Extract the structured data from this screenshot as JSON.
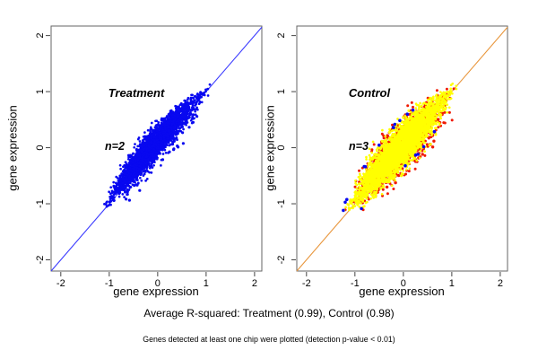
{
  "figure": {
    "caption": "Average R-squared: Treatment (0.99), Control (0.98)",
    "footnote": "Genes detected at least one chip were plotted (detection p-value < 0.01)"
  },
  "chart_data": [
    {
      "type": "scatter",
      "panel_label": "Treatment",
      "annotation": "n=2",
      "xlabel": "gene expression",
      "ylabel": "gene expression",
      "xlim": [
        -2.2,
        2.15
      ],
      "ylim": [
        -2.2,
        2.17
      ],
      "xticks": [
        -2,
        -1,
        0,
        1,
        2
      ],
      "yticks": [
        -2,
        -1,
        0,
        1,
        2
      ],
      "grid": false,
      "legend": null,
      "r_squared": 0.99,
      "identity_line_color": "#3b3bff",
      "panel_label_color": "#8c8c8c",
      "annotation_color": "#000000",
      "description": "Dense cloud of blue replicate gene-expression points hugging the y=x identity line from about (-1.2,-1.2) to (1.16,1.16), bulging slightly above the line mid-range, with sparse outlier dots below the line.",
      "series": [
        {
          "name": "treatment-points",
          "color": "#0808f0",
          "n": 2800,
          "radius": 1.35,
          "t_range": [
            -1.2,
            1.16
          ],
          "width_center": 0.18,
          "width_edge": 0.02,
          "bow": 0.1,
          "sag": [
            0.07,
            0.18
          ],
          "outliers": {
            "n": 42,
            "t_range": [
              -0.8,
              0.7
            ],
            "perp": [
              0.14,
              0.55
            ],
            "radius": 1.6
          }
        }
      ]
    },
    {
      "type": "scatter",
      "panel_label": "Control",
      "annotation": "n=3",
      "xlabel": "gene expression",
      "ylabel": "gene expression",
      "xlim": [
        -2.2,
        2.15
      ],
      "ylim": [
        -2.2,
        2.17
      ],
      "xticks": [
        -2,
        -1,
        0,
        1,
        2
      ],
      "yticks": [
        -2,
        -1,
        0,
        1,
        2
      ],
      "grid": false,
      "legend": null,
      "r_squared": 0.98,
      "identity_line_color": "#e8963c",
      "panel_label_color": "#8c8c8c",
      "annotation_color": "#000000",
      "description": "Wide yellow cloud along the y=x identity line from about (-1.25,-1.25) to (1.2,1.2) with a red fringe of points peeking out around its edge, red outlier dots below the line, and a few blue points along the cloud edges.",
      "series": [
        {
          "name": "control-red-fringe",
          "color": "#f01800",
          "n": 1100,
          "radius": 1.5,
          "t_range": [
            -1.24,
            1.19
          ],
          "width_center": 0.3,
          "width_edge": 0.04,
          "bow": 0.06,
          "sag": [
            0.12,
            0.2
          ],
          "outliers": {
            "n": 26,
            "t_range": [
              -0.6,
              0.55
            ],
            "perp": [
              0.18,
              0.6
            ],
            "radius": 1.7
          }
        },
        {
          "name": "control-yellow-core",
          "color": "#ffff00",
          "n": 3400,
          "radius": 1.35,
          "t_range": [
            -1.25,
            1.2
          ],
          "width_center": 0.26,
          "width_edge": 0.03,
          "bow": 0.06,
          "sag": [
            0.08,
            0.15
          ]
        },
        {
          "name": "control-blue-accents",
          "color": "#0808f0",
          "n": 0,
          "radius": 1.8,
          "t_range": [
            -1.25,
            1.2
          ],
          "width_center": 0.27,
          "width_edge": 0.03,
          "bow": 0.06,
          "edge": {
            "n": 18,
            "t_range": [
              -1.2,
              0.5
            ],
            "above_frac": 0.6,
            "pad": 0.015,
            "jitter": 0.05
          }
        }
      ]
    }
  ]
}
